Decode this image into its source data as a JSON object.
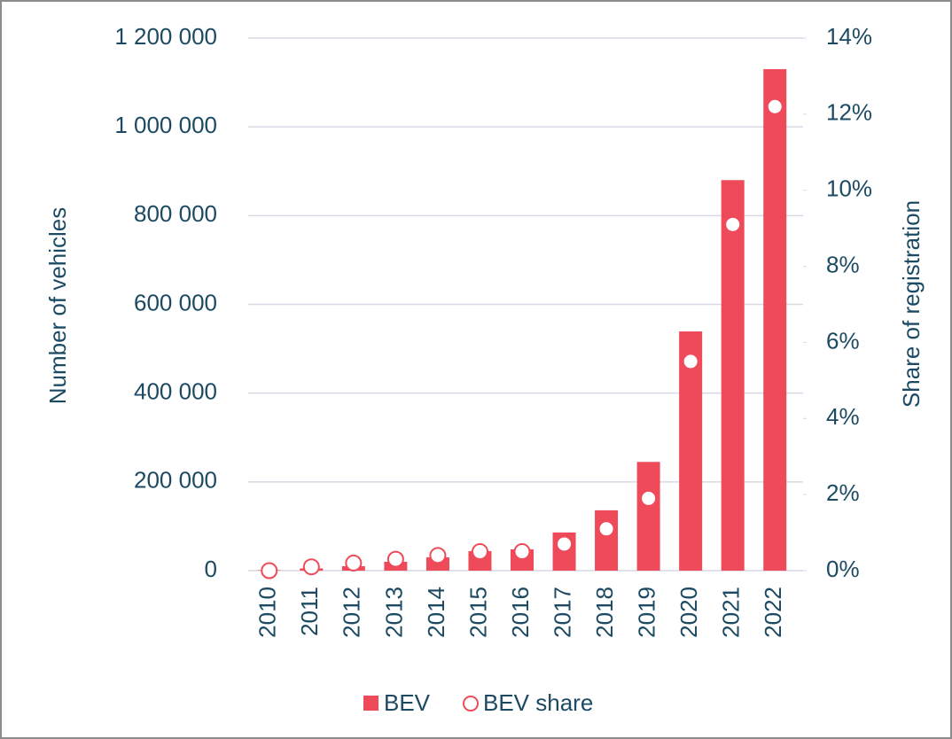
{
  "chart_data": {
    "type": "bar",
    "categories": [
      "2010",
      "2011",
      "2012",
      "2013",
      "2014",
      "2015",
      "2016",
      "2017",
      "2018",
      "2019",
      "2020",
      "2021",
      "2022"
    ],
    "series": [
      {
        "name": "BEV",
        "color": "#ef4a5a",
        "values": [
          1000,
          5000,
          10000,
          20000,
          30000,
          44000,
          48000,
          86000,
          136000,
          245000,
          539000,
          880000,
          1130000
        ]
      },
      {
        "name": "BEV share",
        "color": "#ef4a5a",
        "axis": "y2",
        "values": [
          0.0,
          0.1,
          0.2,
          0.3,
          0.4,
          0.5,
          0.5,
          0.7,
          1.1,
          1.9,
          5.5,
          9.1,
          12.2
        ]
      }
    ],
    "ylabel": "Number of vehicles",
    "y2label": "Share of registration",
    "ylim": [
      0,
      1200000
    ],
    "yticks": [
      0,
      {
        "value": 200000,
        "label": "200 000"
      },
      {
        "value": 400000,
        "label": "400 000"
      },
      {
        "value": 600000,
        "label": "600 000"
      },
      {
        "value": 800000,
        "label": "800 000"
      },
      {
        "value": 1000000,
        "label": "1 000 000"
      },
      {
        "value": 1200000,
        "label": "1 200 000"
      }
    ],
    "y2lim": [
      0,
      14
    ],
    "y2ticks": [
      {
        "value": 0,
        "label": "0%"
      },
      {
        "value": 2,
        "label": "2%"
      },
      {
        "value": 4,
        "label": "4%"
      },
      {
        "value": 6,
        "label": "6%"
      },
      {
        "value": 8,
        "label": "8%"
      },
      {
        "value": 10,
        "label": "10%"
      },
      {
        "value": 12,
        "label": "12%"
      },
      {
        "value": 14,
        "label": "14%"
      }
    ],
    "grid": true,
    "legend": "bottom"
  }
}
